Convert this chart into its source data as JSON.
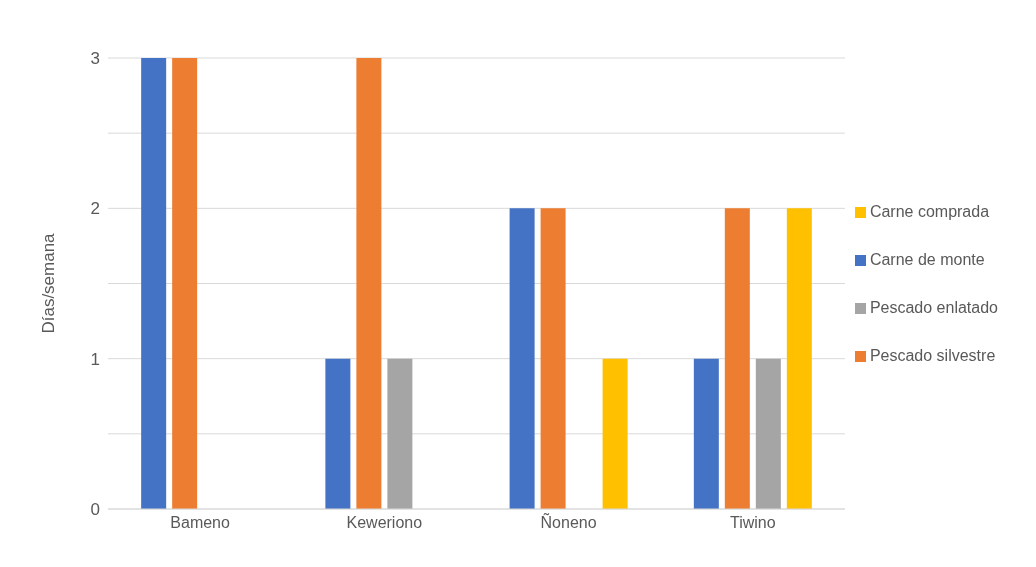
{
  "chart_data": {
    "type": "bar",
    "ylabel": "Días/semana",
    "categories": [
      "Bameno",
      "Keweriono",
      "Ñoneno",
      "Tiwino"
    ],
    "series": [
      {
        "name": "Carne de monte",
        "color": "#4472c4",
        "values": [
          3,
          1,
          2,
          1
        ]
      },
      {
        "name": "Pescado silvestre",
        "color": "#ed7d31",
        "values": [
          3,
          3,
          2,
          2
        ]
      },
      {
        "name": "Pescado enlatado",
        "color": "#a5a5a5",
        "values": [
          0,
          1,
          0,
          1
        ]
      },
      {
        "name": "Carne comprada",
        "color": "#ffc000",
        "values": [
          0,
          0,
          1,
          2
        ]
      }
    ],
    "ylim": [
      0,
      3
    ],
    "yticks": [
      0,
      {
        "value": 0.5,
        "label": null
      },
      1,
      {
        "value": 1.5,
        "label": null
      },
      2,
      {
        "value": 2.5,
        "label": null
      },
      3
    ],
    "grid": "y",
    "legend": "right"
  }
}
